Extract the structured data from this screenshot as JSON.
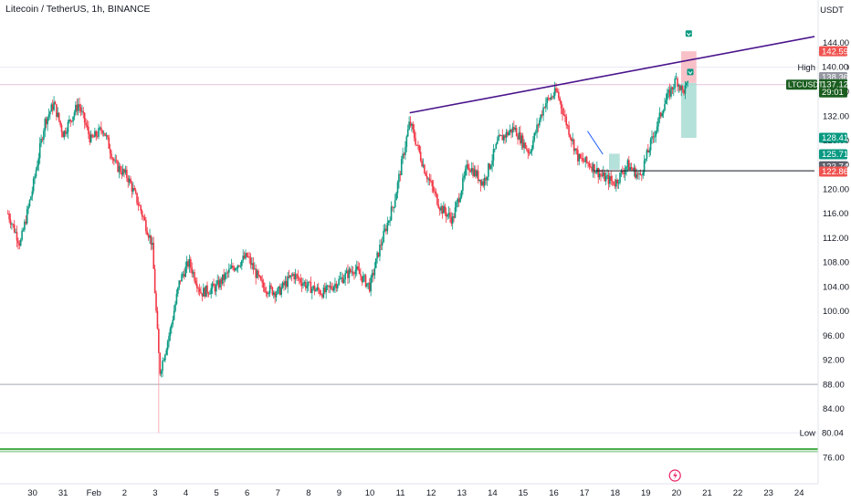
{
  "header": {
    "title": "Litecoin / TetherUS, 1h, BINANCE",
    "currency": "USDT"
  },
  "chart_data": {
    "type": "candlestick",
    "symbol": "LTCUSDT",
    "interval": "1h",
    "exchange": "BINANCE",
    "quote_currency": "USDT",
    "ylim": [
      75,
      148
    ],
    "y_ticks": [
      76,
      80,
      84,
      88,
      92,
      96,
      100,
      104,
      108,
      112,
      116,
      120,
      124,
      128,
      132,
      136,
      140,
      144
    ],
    "y_tick_labels": [
      "76.00",
      "80.00",
      "84.00",
      "88.00",
      "92.00",
      "96.00",
      "100.00",
      "104.00",
      "108.00",
      "112.00",
      "116.00",
      "120.00",
      "124.00",
      "128.00",
      "132.00",
      "136.00",
      "140.00",
      "144.00"
    ],
    "x_ticks": [
      {
        "label": "30",
        "day": 30
      },
      {
        "label": "31",
        "day": 31
      },
      {
        "label": "Feb",
        "day": 32
      },
      {
        "label": "2",
        "day": 33
      },
      {
        "label": "3",
        "day": 34
      },
      {
        "label": "4",
        "day": 35
      },
      {
        "label": "5",
        "day": 36
      },
      {
        "label": "6",
        "day": 37
      },
      {
        "label": "7",
        "day": 38
      },
      {
        "label": "8",
        "day": 39
      },
      {
        "label": "9",
        "day": 40
      },
      {
        "label": "10",
        "day": 41
      },
      {
        "label": "11",
        "day": 42
      },
      {
        "label": "12",
        "day": 43
      },
      {
        "label": "13",
        "day": 44
      },
      {
        "label": "14",
        "day": 45
      },
      {
        "label": "15",
        "day": 46
      },
      {
        "label": "16",
        "day": 47
      },
      {
        "label": "17",
        "day": 48
      },
      {
        "label": "18",
        "day": 49
      },
      {
        "label": "19",
        "day": 50
      },
      {
        "label": "20",
        "day": 51
      },
      {
        "label": "21",
        "day": 52
      },
      {
        "label": "22",
        "day": 53
      },
      {
        "label": "23",
        "day": 54
      },
      {
        "label": "24",
        "day": 55
      }
    ],
    "price_path": [
      {
        "t": 29.2,
        "p": 116
      },
      {
        "t": 29.6,
        "p": 111
      },
      {
        "t": 30.0,
        "p": 120
      },
      {
        "t": 30.4,
        "p": 131
      },
      {
        "t": 30.7,
        "p": 134
      },
      {
        "t": 31.0,
        "p": 129
      },
      {
        "t": 31.5,
        "p": 134
      },
      {
        "t": 31.9,
        "p": 128
      },
      {
        "t": 32.3,
        "p": 130
      },
      {
        "t": 32.7,
        "p": 124
      },
      {
        "t": 33.1,
        "p": 122
      },
      {
        "t": 33.5,
        "p": 117
      },
      {
        "t": 33.9,
        "p": 111
      },
      {
        "t": 34.15,
        "p": 90
      },
      {
        "t": 34.5,
        "p": 97
      },
      {
        "t": 34.8,
        "p": 105
      },
      {
        "t": 35.1,
        "p": 108
      },
      {
        "t": 35.5,
        "p": 103
      },
      {
        "t": 36.0,
        "p": 104
      },
      {
        "t": 36.5,
        "p": 107
      },
      {
        "t": 37.0,
        "p": 109
      },
      {
        "t": 37.5,
        "p": 104
      },
      {
        "t": 38.0,
        "p": 103
      },
      {
        "t": 38.5,
        "p": 106
      },
      {
        "t": 39.0,
        "p": 104
      },
      {
        "t": 39.5,
        "p": 103
      },
      {
        "t": 40.0,
        "p": 105
      },
      {
        "t": 40.5,
        "p": 107
      },
      {
        "t": 41.0,
        "p": 104
      },
      {
        "t": 41.3,
        "p": 110
      },
      {
        "t": 41.8,
        "p": 118
      },
      {
        "t": 42.3,
        "p": 131
      },
      {
        "t": 42.8,
        "p": 123
      },
      {
        "t": 43.3,
        "p": 117
      },
      {
        "t": 43.7,
        "p": 115
      },
      {
        "t": 44.2,
        "p": 124
      },
      {
        "t": 44.7,
        "p": 121
      },
      {
        "t": 45.2,
        "p": 128
      },
      {
        "t": 45.7,
        "p": 130
      },
      {
        "t": 46.2,
        "p": 126
      },
      {
        "t": 46.7,
        "p": 134
      },
      {
        "t": 47.1,
        "p": 136
      },
      {
        "t": 47.4,
        "p": 131
      },
      {
        "t": 47.8,
        "p": 125
      },
      {
        "t": 48.2,
        "p": 124
      },
      {
        "t": 48.6,
        "p": 122
      },
      {
        "t": 49.0,
        "p": 121
      },
      {
        "t": 49.4,
        "p": 124
      },
      {
        "t": 49.8,
        "p": 122
      },
      {
        "t": 50.2,
        "p": 128
      },
      {
        "t": 50.6,
        "p": 134
      },
      {
        "t": 51.0,
        "p": 138
      },
      {
        "t": 51.2,
        "p": 136
      },
      {
        "t": 51.4,
        "p": 137.12
      }
    ],
    "horizontal_lines": [
      {
        "price": 140.0,
        "color": "#e8e8f4",
        "label": "High"
      },
      {
        "price": 137.12,
        "color": "#e6c2dc"
      },
      {
        "price": 88.0,
        "color": "#a3a6af"
      },
      {
        "price": 80.04,
        "color": "#e8e8f4",
        "label": "Low"
      },
      {
        "price": 77.4,
        "color": "#4caf50"
      },
      {
        "price": 77.0,
        "color": "#a5d6a7"
      }
    ],
    "trend_lines": [
      {
        "t1": 42.3,
        "p1": 132.5,
        "t2": 55.5,
        "p2": 145.0,
        "color": "#4a148c"
      },
      {
        "t1": 48.3,
        "p1": 123.0,
        "t2": 55.5,
        "p2": 123.0,
        "color": "#131722"
      },
      {
        "t1": 48.1,
        "p1": 129.5,
        "t2": 48.6,
        "p2": 125.7,
        "color": "#2962ff"
      }
    ],
    "position_boxes": [
      {
        "t1": 51.15,
        "t2": 51.65,
        "top": 142.59,
        "bottom": 137.4,
        "color": "#f7b6be"
      },
      {
        "t1": 51.15,
        "t2": 51.65,
        "top": 137.4,
        "bottom": 128.4,
        "color": "#a7dcd3"
      },
      {
        "t1": 48.8,
        "t2": 49.15,
        "top": 125.8,
        "bottom": 123.2,
        "color": "#a7dcd3"
      }
    ],
    "price_labels": [
      {
        "price": 142.59,
        "text": "142.59",
        "bg": "#ef5350",
        "fg": "#ffffff"
      },
      {
        "price": 140.0,
        "text": "140.00",
        "bg": "#ffffff",
        "fg": "#131722"
      },
      {
        "price": 138.36,
        "text": "138.36",
        "bg": "#9598a1",
        "fg": "#ffffff"
      },
      {
        "price": 137.12,
        "text": "137.12",
        "sub": "29:01",
        "bg": "#1b5e20",
        "fg": "#ffffff",
        "badge": "LTCUSDT"
      },
      {
        "price": 128.41,
        "text": "128.41",
        "bg": "#089981",
        "fg": "#ffffff"
      },
      {
        "price": 125.71,
        "text": "125.71",
        "bg": "#089981",
        "fg": "#ffffff"
      },
      {
        "price": 123.74,
        "text": "123.74",
        "bg": "#5d606b",
        "fg": "#ffffff"
      },
      {
        "price": 122.86,
        "text": "122.86",
        "bg": "#ef5350",
        "fg": "#ffffff"
      },
      {
        "price": 80.04,
        "text": "80.04",
        "bg": "#ffffff",
        "fg": "#131722"
      }
    ],
    "side_labels": [
      {
        "price": 140.0,
        "text": "High"
      },
      {
        "price": 80.04,
        "text": "Low"
      }
    ],
    "colors": {
      "up": "#089981",
      "down": "#f23645",
      "wick_down": "#f7a1a8",
      "axis": "#e0e3eb",
      "text": "#131722"
    }
  }
}
